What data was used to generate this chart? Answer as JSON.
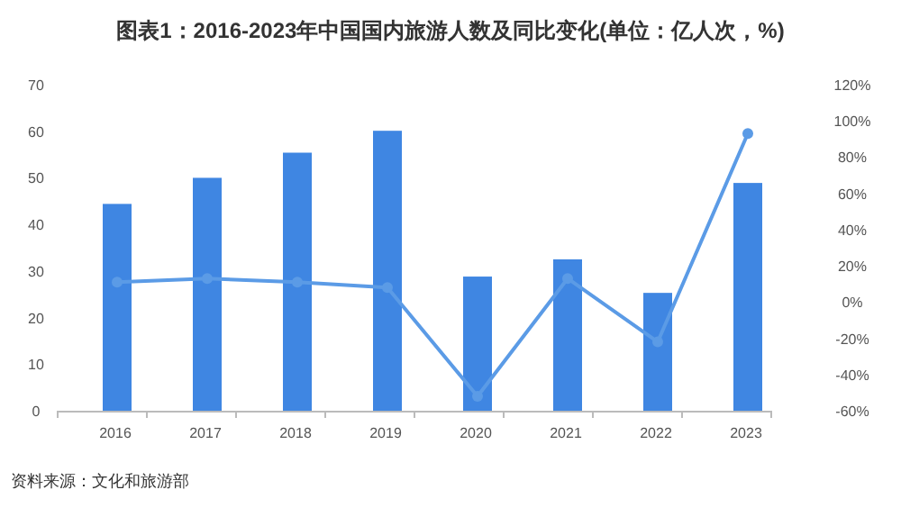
{
  "chart_data": {
    "type": "bar",
    "title": "图表1：2016-2023年中国国内旅游人数及同比变化(单位：亿人次，%)",
    "categories": [
      "2016",
      "2017",
      "2018",
      "2019",
      "2020",
      "2021",
      "2022",
      "2023"
    ],
    "series": [
      {
        "color": "#3f86e2",
        "values": [
          44.4,
          50.0,
          55.4,
          60.1,
          28.8,
          32.5,
          25.3,
          48.9
        ]
      },
      {
        "type": "line",
        "axis": "y2",
        "color": "#5b9be6",
        "marker": "circle",
        "values": [
          11,
          13,
          11,
          8,
          -52,
          13,
          -22,
          93
        ]
      }
    ],
    "ylim": [
      0,
      70
    ],
    "yticks": [
      0,
      10,
      20,
      30,
      40,
      50,
      60,
      70
    ],
    "y2lim": [
      -60,
      120
    ],
    "y2ticks": [
      {
        "value": -60,
        "label": "-60%"
      },
      {
        "value": -40,
        "label": "-40%"
      },
      {
        "value": -20,
        "label": "-20%"
      },
      {
        "value": 0,
        "label": "0%"
      },
      {
        "value": 20,
        "label": "20%"
      },
      {
        "value": 40,
        "label": "40%"
      },
      {
        "value": 60,
        "label": "60%"
      },
      {
        "value": 80,
        "label": "80%"
      },
      {
        "value": 100,
        "label": "100%"
      },
      {
        "value": 120,
        "label": "120%"
      }
    ],
    "grid": false,
    "annotations": [
      "资料来源：文化和旅游部"
    ]
  }
}
